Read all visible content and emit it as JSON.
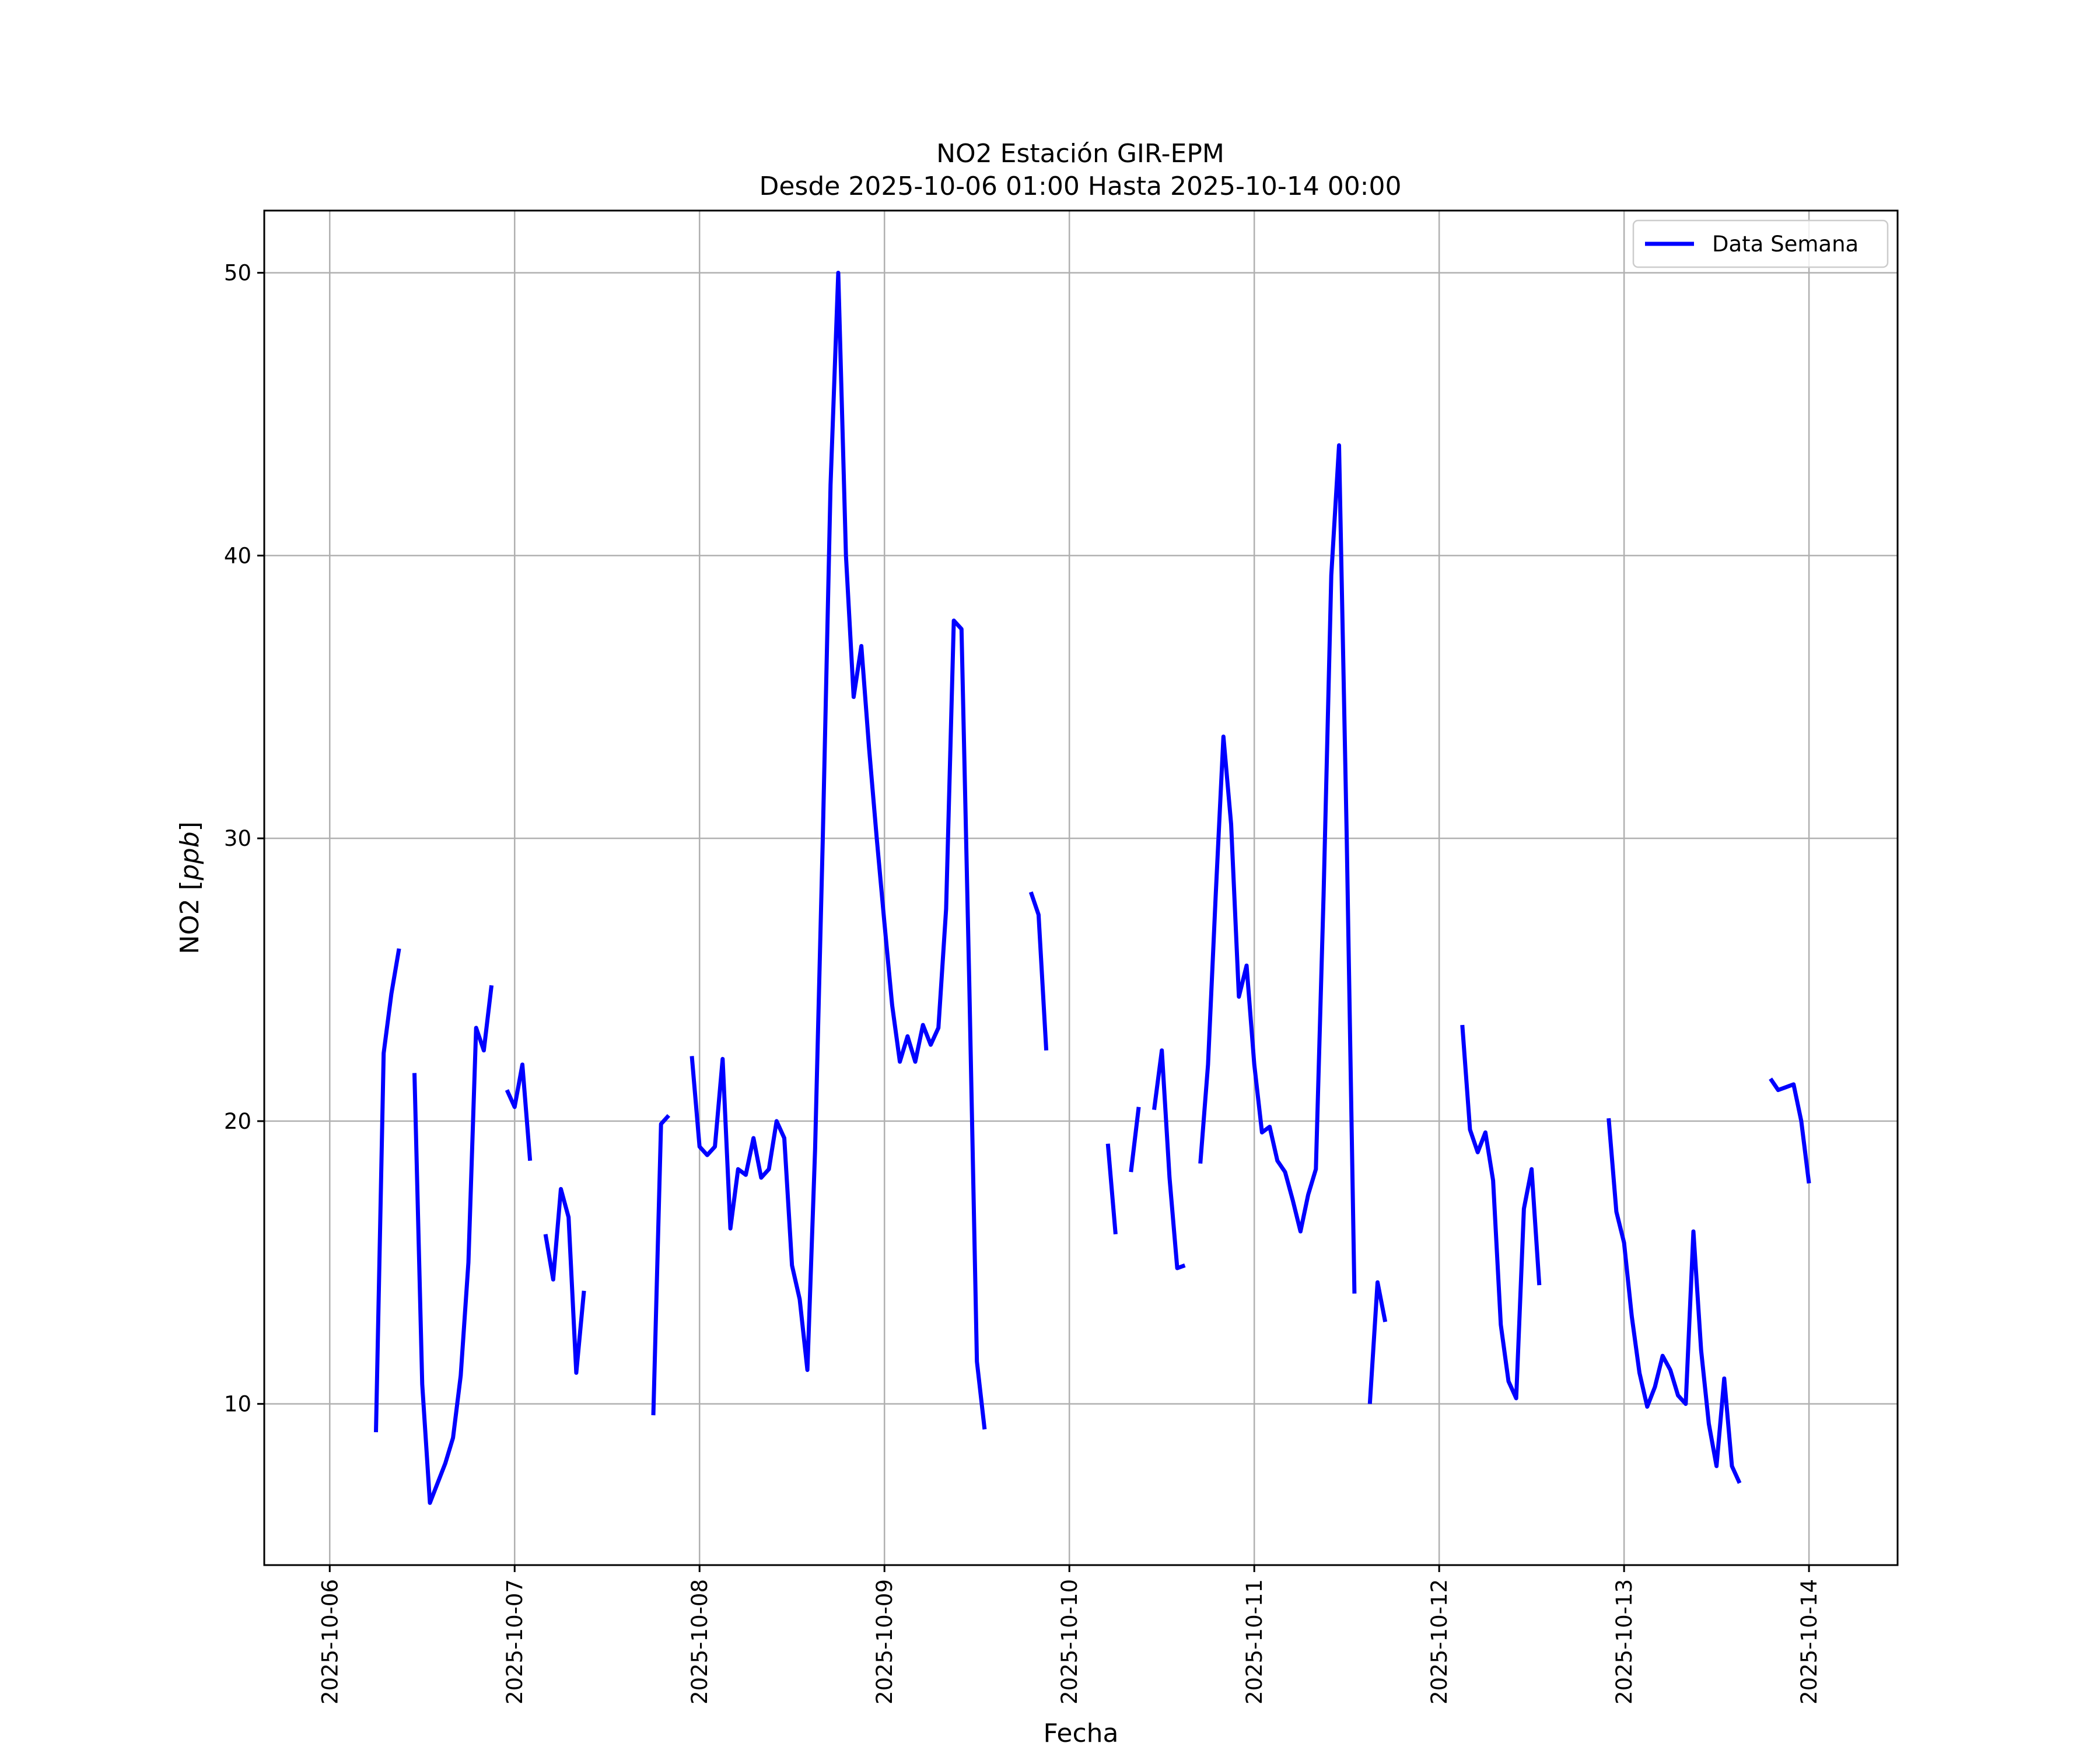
{
  "chart_data": {
    "type": "line",
    "title": "NO2 Estación GIR-EPM",
    "subtitle": "Desde 2025-10-06 01:00 Hasta 2025-10-14 00:00",
    "xlabel": "Fecha",
    "ylabel": "NO2 [ppb]",
    "ylabel_prefix": "NO2 [",
    "ylabel_unit": "ppb",
    "ylabel_suffix": "]",
    "xlim": [
      "2025-10-05 15:30",
      "2025-10-14 11:30"
    ],
    "ylim": [
      4.3,
      52.2
    ],
    "x_ticks": [
      "2025-10-06",
      "2025-10-07",
      "2025-10-08",
      "2025-10-09",
      "2025-10-10",
      "2025-10-11",
      "2025-10-12",
      "2025-10-13",
      "2025-10-14"
    ],
    "y_ticks": [
      10,
      20,
      30,
      40,
      50
    ],
    "grid": true,
    "legend": {
      "position": "top-right",
      "entries": [
        "Data Semana"
      ]
    },
    "series": [
      {
        "name": "Data Semana",
        "color": "#0000ff",
        "segments": [
          [
            [
              "2025-10-06 06:00",
              9.0
            ],
            [
              "2025-10-06 07:00",
              22.4
            ],
            [
              "2025-10-06 08:00",
              24.5
            ],
            [
              "2025-10-06 09:00",
              26.1
            ]
          ],
          [
            [
              "2025-10-06 11:00",
              21.7
            ],
            [
              "2025-10-06 12:00",
              10.7
            ],
            [
              "2025-10-06 13:00",
              6.5
            ],
            [
              "2025-10-06 14:00",
              7.2
            ],
            [
              "2025-10-06 15:00",
              7.9
            ],
            [
              "2025-10-06 16:00",
              8.8
            ],
            [
              "2025-10-06 17:00",
              11.0
            ],
            [
              "2025-10-06 18:00",
              15.0
            ],
            [
              "2025-10-06 19:00",
              23.3
            ],
            [
              "2025-10-06 20:00",
              22.5
            ],
            [
              "2025-10-06 21:00",
              24.8
            ]
          ],
          [
            [
              "2025-10-06 23:00",
              21.1
            ],
            [
              "2025-10-07 00:00",
              20.5
            ],
            [
              "2025-10-07 01:00",
              22.0
            ],
            [
              "2025-10-07 02:00",
              18.6
            ]
          ],
          [
            [
              "2025-10-07 04:00",
              16.0
            ],
            [
              "2025-10-07 05:00",
              14.4
            ],
            [
              "2025-10-07 06:00",
              17.6
            ],
            [
              "2025-10-07 07:00",
              16.6
            ],
            [
              "2025-10-07 08:00",
              11.1
            ],
            [
              "2025-10-07 09:00",
              14.0
            ]
          ],
          [
            [
              "2025-10-07 18:00",
              9.6
            ],
            [
              "2025-10-07 19:00",
              19.9
            ],
            [
              "2025-10-07 20:00",
              20.2
            ]
          ],
          [
            [
              "2025-10-07 23:00",
              22.3
            ],
            [
              "2025-10-08 00:00",
              19.1
            ],
            [
              "2025-10-08 01:00",
              18.8
            ],
            [
              "2025-10-08 02:00",
              19.1
            ],
            [
              "2025-10-08 03:00",
              22.2
            ],
            [
              "2025-10-08 04:00",
              16.2
            ],
            [
              "2025-10-08 05:00",
              18.3
            ],
            [
              "2025-10-08 06:00",
              18.1
            ],
            [
              "2025-10-08 07:00",
              19.4
            ],
            [
              "2025-10-08 08:00",
              18.0
            ],
            [
              "2025-10-08 09:00",
              18.3
            ],
            [
              "2025-10-08 10:00",
              20.0
            ],
            [
              "2025-10-08 11:00",
              19.4
            ],
            [
              "2025-10-08 12:00",
              14.9
            ],
            [
              "2025-10-08 13:00",
              13.7
            ],
            [
              "2025-10-08 14:00",
              11.2
            ],
            [
              "2025-10-08 15:00",
              19.0
            ],
            [
              "2025-10-08 16:00",
              30.0
            ],
            [
              "2025-10-08 17:00",
              42.5
            ],
            [
              "2025-10-08 18:00",
              50.0
            ],
            [
              "2025-10-08 19:00",
              40.0
            ],
            [
              "2025-10-08 20:00",
              35.0
            ],
            [
              "2025-10-08 21:00",
              36.8
            ],
            [
              "2025-10-08 22:00",
              33.2
            ],
            [
              "2025-10-08 23:00",
              30.0
            ],
            [
              "2025-10-09 00:00",
              27.0
            ],
            [
              "2025-10-09 01:00",
              24.1
            ],
            [
              "2025-10-09 02:00",
              22.1
            ],
            [
              "2025-10-09 03:00",
              23.0
            ],
            [
              "2025-10-09 04:00",
              22.1
            ],
            [
              "2025-10-09 05:00",
              23.4
            ],
            [
              "2025-10-09 06:00",
              22.7
            ],
            [
              "2025-10-09 07:00",
              23.3
            ],
            [
              "2025-10-09 08:00",
              27.5
            ],
            [
              "2025-10-09 09:00",
              37.7
            ],
            [
              "2025-10-09 10:00",
              37.4
            ],
            [
              "2025-10-09 11:00",
              25.0
            ],
            [
              "2025-10-09 12:00",
              11.5
            ],
            [
              "2025-10-09 13:00",
              9.1
            ]
          ],
          [
            [
              "2025-10-09 19:00",
              28.1
            ],
            [
              "2025-10-09 20:00",
              27.3
            ],
            [
              "2025-10-09 21:00",
              22.5
            ]
          ],
          [
            [
              "2025-10-10 05:00",
              19.2
            ],
            [
              "2025-10-10 06:00",
              16.0
            ]
          ],
          [
            [
              "2025-10-10 08:00",
              18.2
            ],
            [
              "2025-10-10 09:00",
              20.5
            ]
          ],
          [
            [
              "2025-10-10 11:00",
              20.4
            ],
            [
              "2025-10-10 12:00",
              22.5
            ],
            [
              "2025-10-10 13:00",
              18.0
            ],
            [
              "2025-10-10 14:00",
              14.8
            ],
            [
              "2025-10-10 15:00",
              14.9
            ]
          ],
          [
            [
              "2025-10-10 17:00",
              18.5
            ],
            [
              "2025-10-10 18:00",
              22.0
            ],
            [
              "2025-10-10 19:00",
              28.0
            ],
            [
              "2025-10-10 20:00",
              33.6
            ],
            [
              "2025-10-10 21:00",
              30.5
            ],
            [
              "2025-10-10 22:00",
              24.4
            ],
            [
              "2025-10-10 23:00",
              25.5
            ],
            [
              "2025-10-11 00:00",
              22.0
            ],
            [
              "2025-10-11 01:00",
              19.6
            ],
            [
              "2025-10-11 02:00",
              19.8
            ],
            [
              "2025-10-11 03:00",
              18.6
            ],
            [
              "2025-10-11 04:00",
              18.2
            ],
            [
              "2025-10-11 05:00",
              17.2
            ],
            [
              "2025-10-11 06:00",
              16.1
            ],
            [
              "2025-10-11 07:00",
              17.4
            ],
            [
              "2025-10-11 08:00",
              18.3
            ],
            [
              "2025-10-11 09:00",
              28.0
            ],
            [
              "2025-10-11 10:00",
              39.3
            ],
            [
              "2025-10-11 11:00",
              43.9
            ],
            [
              "2025-10-11 12:00",
              30.0
            ],
            [
              "2025-10-11 13:00",
              13.9
            ]
          ],
          [
            [
              "2025-10-11 15:00",
              10.0
            ],
            [
              "2025-10-11 16:00",
              14.3
            ],
            [
              "2025-10-11 17:00",
              12.9
            ]
          ],
          [
            [
              "2025-10-12 03:00",
              23.4
            ],
            [
              "2025-10-12 04:00",
              19.7
            ],
            [
              "2025-10-12 05:00",
              18.9
            ],
            [
              "2025-10-12 06:00",
              19.6
            ],
            [
              "2025-10-12 07:00",
              17.9
            ],
            [
              "2025-10-12 08:00",
              12.8
            ],
            [
              "2025-10-12 09:00",
              10.8
            ],
            [
              "2025-10-12 10:00",
              10.2
            ],
            [
              "2025-10-12 11:00",
              16.9
            ],
            [
              "2025-10-12 12:00",
              18.3
            ],
            [
              "2025-10-12 13:00",
              14.2
            ]
          ],
          [
            [
              "2025-10-12 22:00",
              20.1
            ],
            [
              "2025-10-12 23:00",
              16.8
            ],
            [
              "2025-10-13 00:00",
              15.7
            ],
            [
              "2025-10-13 01:00",
              13.1
            ],
            [
              "2025-10-13 02:00",
              11.1
            ],
            [
              "2025-10-13 03:00",
              9.9
            ],
            [
              "2025-10-13 04:00",
              10.6
            ],
            [
              "2025-10-13 05:00",
              11.7
            ],
            [
              "2025-10-13 06:00",
              11.2
            ],
            [
              "2025-10-13 07:00",
              10.3
            ],
            [
              "2025-10-13 08:00",
              10.0
            ],
            [
              "2025-10-13 09:00",
              16.1
            ],
            [
              "2025-10-13 10:00",
              11.9
            ],
            [
              "2025-10-13 11:00",
              9.3
            ],
            [
              "2025-10-13 12:00",
              7.8
            ],
            [
              "2025-10-13 13:00",
              10.9
            ],
            [
              "2025-10-13 14:00",
              7.8
            ],
            [
              "2025-10-13 15:00",
              7.2
            ]
          ],
          [
            [
              "2025-10-13 19:00",
              21.5
            ],
            [
              "2025-10-13 20:00",
              21.1
            ],
            [
              "2025-10-13 21:00",
              21.2
            ],
            [
              "2025-10-13 22:00",
              21.3
            ],
            [
              "2025-10-13 23:00",
              20.0
            ],
            [
              "2025-10-14 00:00",
              17.8
            ]
          ]
        ]
      }
    ]
  }
}
